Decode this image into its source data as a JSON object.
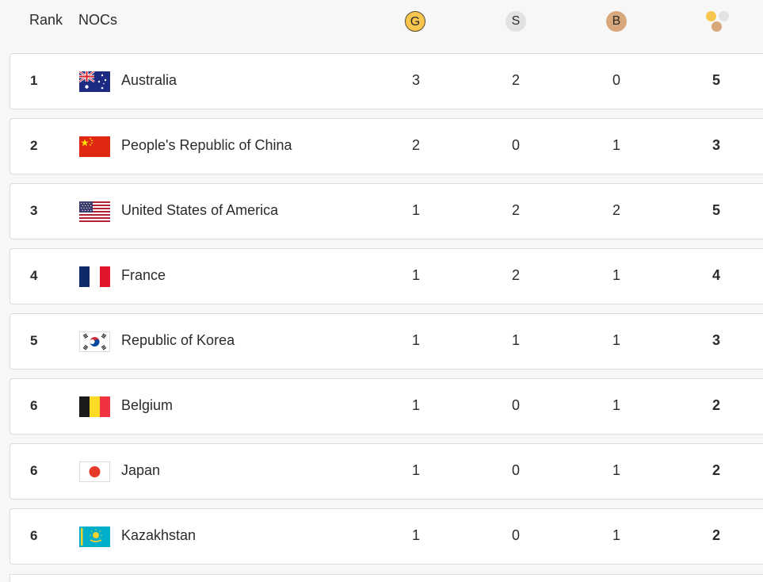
{
  "header": {
    "rank_label": "Rank",
    "noc_label": "NOCs",
    "gold_label": "G",
    "silver_label": "S",
    "bronze_label": "B",
    "total_icon": "medals-total-icon"
  },
  "colors": {
    "gold": "#f7c64e",
    "silver": "#e2e2e2",
    "bronze": "#d8a77b",
    "row_bg": "#ffffff",
    "page_bg": "#f7f7f8"
  },
  "rows": [
    {
      "rank": "1",
      "country": "Australia",
      "flag": "australia-flag",
      "gold": "3",
      "silver": "2",
      "bronze": "0",
      "total": "5"
    },
    {
      "rank": "2",
      "country": "People's Republic of China",
      "flag": "china-flag",
      "gold": "2",
      "silver": "0",
      "bronze": "1",
      "total": "3"
    },
    {
      "rank": "3",
      "country": "United States of America",
      "flag": "usa-flag",
      "gold": "1",
      "silver": "2",
      "bronze": "2",
      "total": "5"
    },
    {
      "rank": "4",
      "country": "France",
      "flag": "france-flag",
      "gold": "1",
      "silver": "2",
      "bronze": "1",
      "total": "4"
    },
    {
      "rank": "5",
      "country": "Republic of Korea",
      "flag": "korea-flag",
      "gold": "1",
      "silver": "1",
      "bronze": "1",
      "total": "3"
    },
    {
      "rank": "6",
      "country": "Belgium",
      "flag": "belgium-flag",
      "gold": "1",
      "silver": "0",
      "bronze": "1",
      "total": "2"
    },
    {
      "rank": "6",
      "country": "Japan",
      "flag": "japan-flag",
      "gold": "1",
      "silver": "0",
      "bronze": "1",
      "total": "2"
    },
    {
      "rank": "6",
      "country": "Kazakhstan",
      "flag": "kazakhstan-flag",
      "gold": "1",
      "silver": "0",
      "bronze": "1",
      "total": "2"
    }
  ]
}
